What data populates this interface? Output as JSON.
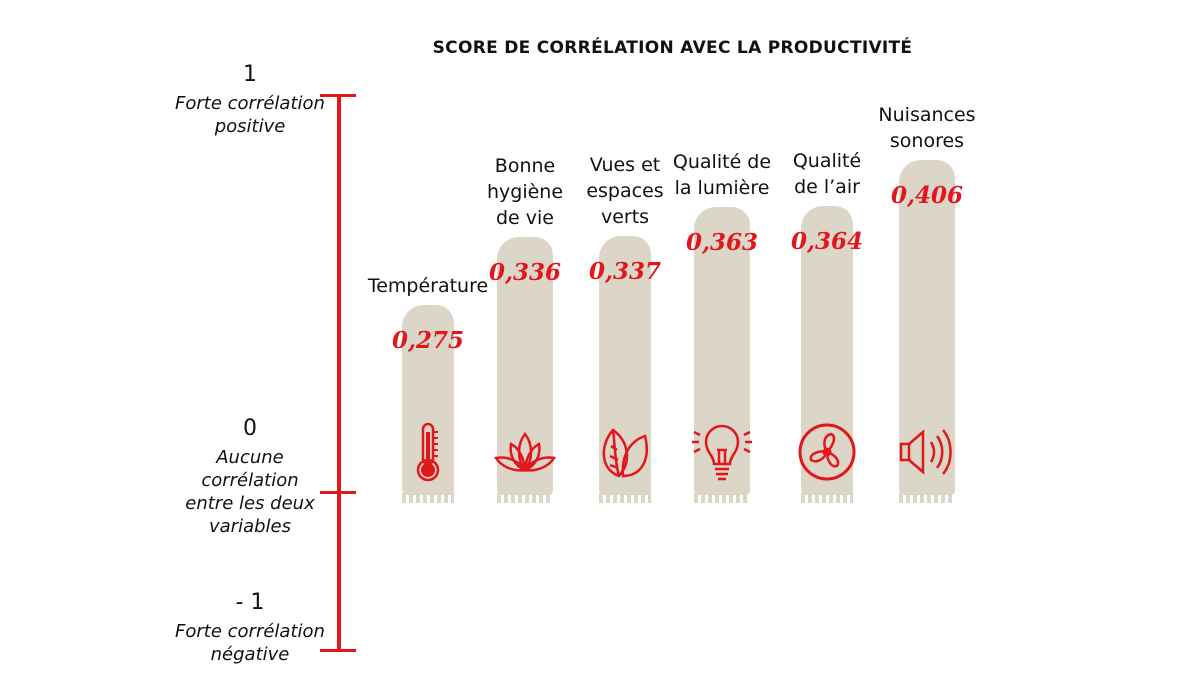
{
  "chart_data": {
    "type": "bar",
    "title": "SCORE DE CORRÉLATION AVEC LA PRODUCTIVITÉ",
    "categories": [
      "Température",
      "Bonne hygiène de vie",
      "Vues et espaces verts",
      "Qualité de la lumière",
      "Qualité de l’air",
      "Nuisances sonores"
    ],
    "category_lines": [
      [
        "Température"
      ],
      [
        "Bonne",
        "hygiène",
        "de vie"
      ],
      [
        "Vues et",
        "espaces",
        "verts"
      ],
      [
        "Qualité de",
        "la lumière"
      ],
      [
        "Qualité",
        "de l’air"
      ],
      [
        "Nuisances",
        "sonores"
      ]
    ],
    "values": [
      0.275,
      0.336,
      0.337,
      0.363,
      0.364,
      0.406
    ],
    "value_labels": [
      "0,275",
      "0,336",
      "0,337",
      "0,363",
      "0,364",
      "0,406"
    ],
    "icons": [
      "thermometer-icon",
      "lotus-icon",
      "leaf-icon",
      "lightbulb-icon",
      "fan-icon",
      "speaker-icon"
    ],
    "ylim": [
      -1,
      1
    ],
    "axis_ticks": [
      {
        "value": "1",
        "label": "Forte corrélation positive",
        "lines": [
          "Forte corrélation",
          "positive"
        ]
      },
      {
        "value": "0",
        "label": "Aucune corrélation entre les deux variables",
        "lines": [
          "Aucune",
          "corrélation",
          "entre les deux",
          "variables"
        ]
      },
      {
        "value": "- 1",
        "label": "Forte corrélation négative",
        "lines": [
          "Forte corrélation",
          "négative"
        ]
      }
    ],
    "colors": {
      "accent": "#e3161b",
      "bar": "#dcd6c9"
    },
    "grid": false,
    "legend": "none"
  }
}
